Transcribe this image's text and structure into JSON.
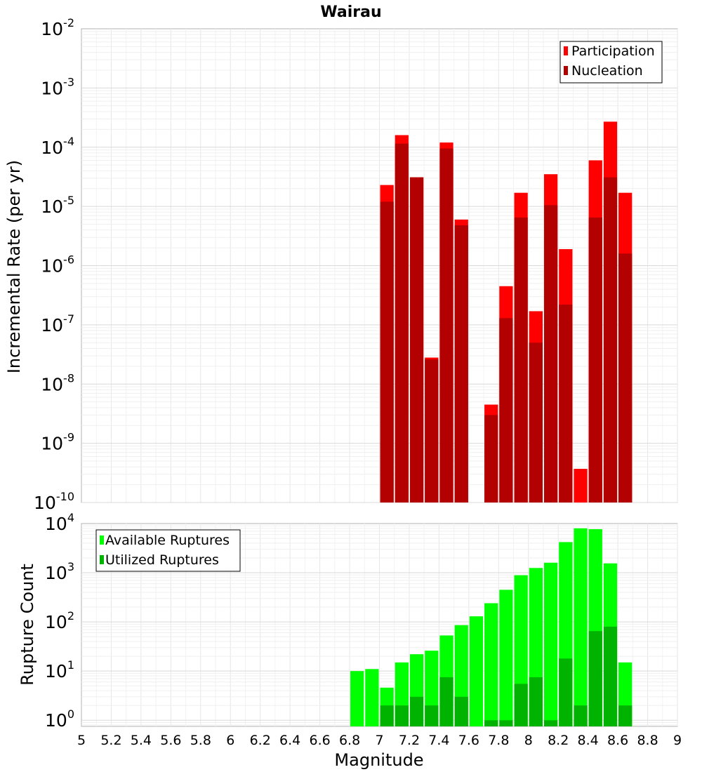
{
  "chart_data": [
    {
      "type": "bar",
      "title": "Wairau",
      "ylabel": "Incremental Rate (per yr)",
      "yscale": "log",
      "ylim": [
        1e-10,
        0.01
      ],
      "xlim": [
        5,
        9
      ],
      "bin_width": 0.1,
      "grid": true,
      "legend_position": "top-right",
      "y_tick_exponents": [
        "-10",
        "-9",
        "-8",
        "-7",
        "-6",
        "-5",
        "-4",
        "-3",
        "-2"
      ],
      "x": [
        7.05,
        7.15,
        7.25,
        7.35,
        7.45,
        7.55,
        7.75,
        7.85,
        7.95,
        8.05,
        8.15,
        8.25,
        8.35,
        8.45,
        8.55,
        8.65
      ],
      "series": [
        {
          "name": "Participation",
          "color": "#ff0000",
          "values": [
            2.3e-05,
            0.00016,
            3.1e-05,
            2.8e-08,
            0.00012,
            6e-06,
            4.5e-09,
            4.5e-07,
            1.7e-05,
            1.7e-07,
            3.5e-05,
            1.9e-06,
            3.7e-10,
            6e-05,
            0.00027,
            1.7e-05
          ]
        },
        {
          "name": "Nucleation",
          "color": "#b30000",
          "values": [
            1.2e-05,
            0.000115,
            3.1e-05,
            2.6e-08,
            9.5e-05,
            4.8e-06,
            3e-09,
            1.3e-07,
            6.5e-06,
            5e-08,
            1.05e-05,
            2.2e-07,
            null,
            6.5e-06,
            3.1e-05,
            1.6e-06
          ]
        }
      ]
    },
    {
      "type": "bar",
      "xlabel": "Magnitude",
      "ylabel": "Rupture Count",
      "yscale": "log",
      "ylim": [
        0.75,
        10000
      ],
      "xlim": [
        5,
        9
      ],
      "bin_width": 0.1,
      "grid": true,
      "legend_position": "top-left",
      "y_tick_exponents": [
        "0",
        "1",
        "2",
        "3",
        "4"
      ],
      "x_ticks": [
        "5",
        "5.2",
        "5.4",
        "5.6",
        "5.8",
        "6",
        "6.2",
        "6.4",
        "6.6",
        "6.8",
        "7",
        "7.2",
        "7.4",
        "7.6",
        "7.8",
        "8",
        "8.2",
        "8.4",
        "8.6",
        "8.8",
        "9"
      ],
      "x": [
        6.85,
        6.95,
        7.05,
        7.15,
        7.25,
        7.35,
        7.45,
        7.55,
        7.65,
        7.75,
        7.85,
        7.95,
        8.05,
        8.15,
        8.25,
        8.35,
        8.45,
        8.55,
        8.65
      ],
      "series": [
        {
          "name": "Available Ruptures",
          "color": "#00ff00",
          "values": [
            10,
            11,
            4.6,
            15,
            22,
            26,
            53,
            86,
            130,
            240,
            450,
            890,
            1250,
            1600,
            4200,
            8000,
            7700,
            1550,
            15
          ]
        },
        {
          "name": "Utilized Ruptures",
          "color": "#00b300",
          "values": [
            null,
            null,
            2,
            2,
            3,
            2,
            7.5,
            3,
            null,
            1,
            1,
            5.5,
            7.5,
            1,
            18,
            2,
            65,
            80,
            2
          ]
        }
      ]
    }
  ]
}
